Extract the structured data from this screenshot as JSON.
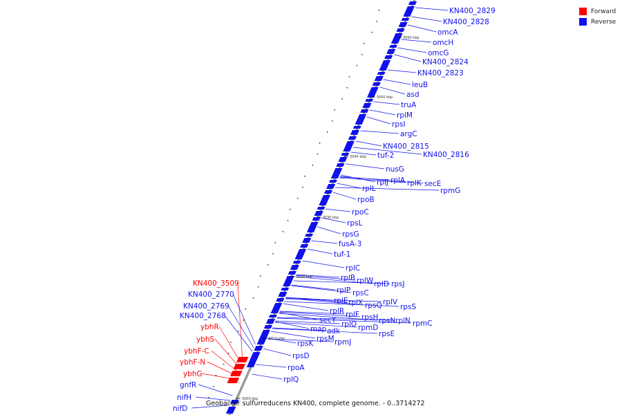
{
  "colors": {
    "forward": "#ff0000",
    "reverse": "#1010ee",
    "backbone": "#9a9a9a",
    "tick": "#000000"
  },
  "legend": [
    {
      "label": "Forward",
      "color": "#ff0000"
    },
    {
      "label": "Reverse",
      "color": "#1010ee"
    }
  ],
  "caption": "Geobacter sulfurreducens KN400, complete genome. - 0..3714272",
  "tick_labels": [
    "3060 kbp",
    "3050 kbp",
    "3040 kbp",
    "3030 kbp",
    "3020 kbp",
    "3010 kbp",
    "3000 kbp"
  ],
  "reverse_genes": [
    "KN400_2829",
    "KN400_2828",
    "omcA",
    "omcH",
    "omcG",
    "KN400_2824",
    "KN400_2823",
    "leuB",
    "asd",
    "truA",
    "rplM",
    "rpsI",
    "argC",
    "KN400_2815",
    "KN400_2816",
    "tuf-2",
    "nusG",
    "rplJ",
    "rplA",
    "rplK",
    "secE",
    "rpmG",
    "rplL",
    "rpoB",
    "rpoC",
    "rpsL",
    "rpsG",
    "fusA-3",
    "tuf-1",
    "rplC",
    "rplB",
    "rplW",
    "rplD",
    "rpsJ",
    "rplP",
    "rpsC",
    "rplE",
    "rplX",
    "rpsQ",
    "rplV",
    "rpsS",
    "rplR",
    "rplF",
    "rpsH",
    "rpsN",
    "rplN",
    "rpmC",
    "secY",
    "rplO",
    "rpmD",
    "map",
    "adk",
    "rpsE",
    "rpsM",
    "rpmJ",
    "rpsK",
    "rpsD",
    "rpoA",
    "rplQ"
  ],
  "forward_genes": [
    "KN400_3509",
    "ybhR",
    "ybhS",
    "ybhF-C",
    "ybhF-N",
    "ybhG"
  ],
  "left_reverse_genes": [
    "KN400_2770",
    "KN400_2769",
    "KN400_2768",
    "gnfR",
    "nifH",
    "nifD"
  ]
}
